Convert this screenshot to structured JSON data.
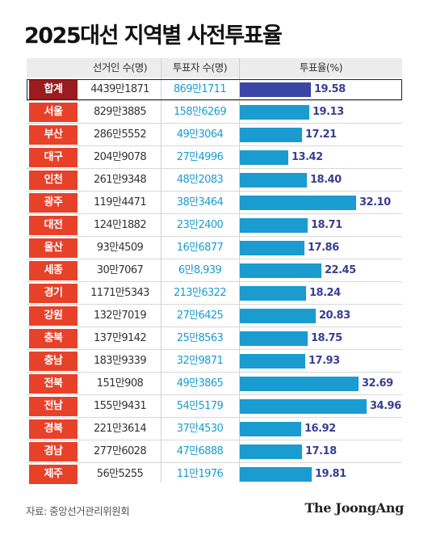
{
  "title": "2025대선 지역별 사전투표율",
  "header": {
    "col_voters": "선거인 수(명)",
    "col_votes": "투표자 수(명)",
    "col_rate": "투표율(%)"
  },
  "source": "자료: 중앙선거관리위원회",
  "brand": "The JoongAng",
  "colors": {
    "region_bg": "#e8412a",
    "total_region_bg": "#9a1c1e",
    "bar": "#1a9cd0",
    "total_bar": "#3a46a6",
    "votes_text": "#1a9cd0",
    "rate_text": "#3a3f92"
  },
  "chart_data": {
    "type": "table",
    "title": "2025대선 지역별 사전투표율",
    "columns": [
      "선거인 수(명)",
      "투표자 수(명)",
      "투표율(%)"
    ],
    "bar_max": 40,
    "rows": [
      {
        "region": "합계",
        "voters": "4439만1871",
        "votes": "869만1711",
        "rate": 19.58,
        "rate_label": "19.58",
        "total": true
      },
      {
        "region": "서울",
        "voters": "829만3885",
        "votes": "158만6269",
        "rate": 19.13,
        "rate_label": "19.13"
      },
      {
        "region": "부산",
        "voters": "286만5552",
        "votes": "49만3064",
        "rate": 17.21,
        "rate_label": "17.21"
      },
      {
        "region": "대구",
        "voters": "204만9078",
        "votes": "27만4996",
        "rate": 13.42,
        "rate_label": "13.42"
      },
      {
        "region": "인천",
        "voters": "261만9348",
        "votes": "48만2083",
        "rate": 18.4,
        "rate_label": "18.40"
      },
      {
        "region": "광주",
        "voters": "119만4471",
        "votes": "38만3464",
        "rate": 32.1,
        "rate_label": "32.10"
      },
      {
        "region": "대전",
        "voters": "124만1882",
        "votes": "23만2400",
        "rate": 18.71,
        "rate_label": "18.71"
      },
      {
        "region": "울산",
        "voters": "93만4509",
        "votes": "16만6877",
        "rate": 17.86,
        "rate_label": "17.86"
      },
      {
        "region": "세종",
        "voters": "30만7067",
        "votes": "6만8,939",
        "rate": 22.45,
        "rate_label": "22.45"
      },
      {
        "region": "경기",
        "voters": "1171만5343",
        "votes": "213만6322",
        "rate": 18.24,
        "rate_label": "18.24"
      },
      {
        "region": "강원",
        "voters": "132만7019",
        "votes": "27만6425",
        "rate": 20.83,
        "rate_label": "20.83"
      },
      {
        "region": "충북",
        "voters": "137만9142",
        "votes": "25만8563",
        "rate": 18.75,
        "rate_label": "18.75"
      },
      {
        "region": "충남",
        "voters": "183만9339",
        "votes": "32만9871",
        "rate": 17.93,
        "rate_label": "17.93"
      },
      {
        "region": "전북",
        "voters": "151만908",
        "votes": "49만3865",
        "rate": 32.69,
        "rate_label": "32.69"
      },
      {
        "region": "전남",
        "voters": "155만9431",
        "votes": "54만5179",
        "rate": 34.96,
        "rate_label": "34.96"
      },
      {
        "region": "경북",
        "voters": "221만3614",
        "votes": "37만4530",
        "rate": 16.92,
        "rate_label": "16.92"
      },
      {
        "region": "경남",
        "voters": "277만6028",
        "votes": "47만6888",
        "rate": 17.18,
        "rate_label": "17.18"
      },
      {
        "region": "제주",
        "voters": "56만5255",
        "votes": "11만1976",
        "rate": 19.81,
        "rate_label": "19.81"
      }
    ]
  }
}
